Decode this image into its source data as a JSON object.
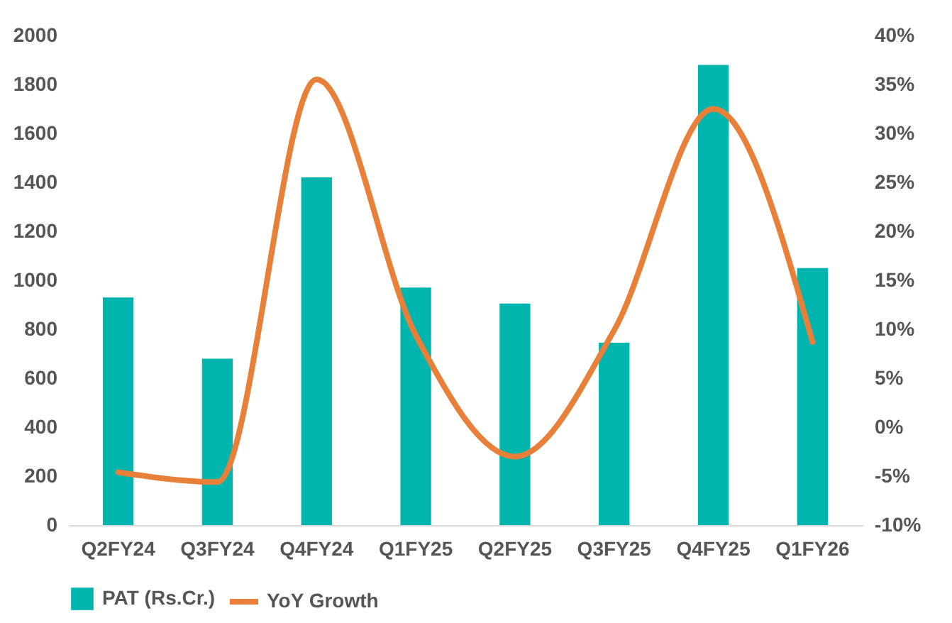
{
  "chart_data": {
    "type": "bar",
    "categories": [
      "Q2FY24",
      "Q3FY24",
      "Q4FY24",
      "Q1FY25",
      "Q2FY25",
      "Q3FY25",
      "Q4FY25",
      "Q1FY26"
    ],
    "series": [
      {
        "name": "PAT (Rs.Cr.)",
        "color": "#00b5ad",
        "values": [
          930,
          680,
          1420,
          970,
          905,
          745,
          1880,
          1050
        ]
      },
      {
        "name": "YoY Growth",
        "type": "line",
        "axis": "y2",
        "color": "#e8803a",
        "values": [
          -4.6,
          -5.6,
          35.5,
          9.4,
          -3.0,
          9.9,
          32.5,
          8.7
        ]
      }
    ],
    "ylim": [
      0,
      2000
    ],
    "yticks": [
      0,
      200,
      400,
      600,
      800,
      1000,
      1200,
      1400,
      1600,
      1800,
      2000
    ],
    "y2lim": [
      -10,
      40
    ],
    "y2ticks": [
      {
        "value": -10,
        "label": "-10%"
      },
      {
        "value": -5,
        "label": "-5%"
      },
      {
        "value": 0,
        "label": "0%"
      },
      {
        "value": 5,
        "label": "5%"
      },
      {
        "value": 10,
        "label": "10%"
      },
      {
        "value": 15,
        "label": "15%"
      },
      {
        "value": 20,
        "label": "20%"
      },
      {
        "value": 25,
        "label": "25%"
      },
      {
        "value": 30,
        "label": "30%"
      },
      {
        "value": 35,
        "label": "35%"
      },
      {
        "value": 40,
        "label": "40%"
      }
    ],
    "legend": "bottom",
    "marker": "none",
    "line_style": "solid",
    "grid": false
  }
}
